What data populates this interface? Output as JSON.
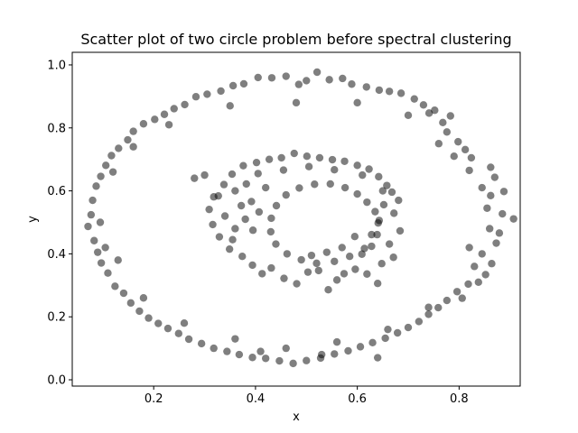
{
  "chart_data": {
    "type": "scatter",
    "title": "Scatter plot of two circle problem before spectral clustering",
    "xlabel": "x",
    "ylabel": "y",
    "xlim": [
      0.04,
      0.92
    ],
    "ylim": [
      -0.02,
      1.04
    ],
    "xticks": [
      0.2,
      0.4,
      0.6,
      0.8
    ],
    "yticks": [
      0.0,
      0.2,
      0.4,
      0.6,
      0.8,
      1.0
    ],
    "xtick_labels": [
      "0.2",
      "0.4",
      "0.6",
      "0.8"
    ],
    "ytick_labels": [
      "0.0",
      "0.2",
      "0.4",
      "0.6",
      "0.8",
      "1.0"
    ],
    "grid": false,
    "legend": "none",
    "marker_color": "#000000",
    "marker_opacity": 0.5,
    "series": [
      {
        "points": [
          [
            0.907,
            0.511
          ],
          [
            0.862,
            0.585
          ],
          [
            0.885,
            0.527
          ],
          [
            0.888,
            0.598
          ],
          [
            0.879,
            0.466
          ],
          [
            0.873,
            0.434
          ],
          [
            0.864,
            0.369
          ],
          [
            0.87,
            0.643
          ],
          [
            0.862,
            0.675
          ],
          [
            0.824,
            0.705
          ],
          [
            0.812,
            0.731
          ],
          [
            0.852,
            0.334
          ],
          [
            0.838,
            0.31
          ],
          [
            0.818,
            0.304
          ],
          [
            0.806,
            0.259
          ],
          [
            0.798,
            0.756
          ],
          [
            0.776,
            0.787
          ],
          [
            0.768,
            0.817
          ],
          [
            0.783,
            0.838
          ],
          [
            0.752,
            0.856
          ],
          [
            0.741,
            0.847
          ],
          [
            0.73,
            0.873
          ],
          [
            0.712,
            0.892
          ],
          [
            0.686,
            0.91
          ],
          [
            0.663,
            0.916
          ],
          [
            0.643,
            0.92
          ],
          [
            0.618,
            0.93
          ],
          [
            0.589,
            0.939
          ],
          [
            0.571,
            0.957
          ],
          [
            0.545,
            0.953
          ],
          [
            0.521,
            0.977
          ],
          [
            0.5,
            0.95
          ],
          [
            0.485,
            0.938
          ],
          [
            0.46,
            0.964
          ],
          [
            0.432,
            0.959
          ],
          [
            0.405,
            0.96
          ],
          [
            0.377,
            0.94
          ],
          [
            0.356,
            0.934
          ],
          [
            0.332,
            0.917
          ],
          [
            0.305,
            0.907
          ],
          [
            0.283,
            0.899
          ],
          [
            0.261,
            0.874
          ],
          [
            0.24,
            0.861
          ],
          [
            0.221,
            0.843
          ],
          [
            0.202,
            0.827
          ],
          [
            0.18,
            0.813
          ],
          [
            0.16,
            0.789
          ],
          [
            0.149,
            0.762
          ],
          [
            0.131,
            0.735
          ],
          [
            0.117,
            0.712
          ],
          [
            0.106,
            0.681
          ],
          [
            0.096,
            0.646
          ],
          [
            0.087,
            0.615
          ],
          [
            0.08,
            0.57
          ],
          [
            0.077,
            0.524
          ],
          [
            0.071,
            0.487
          ],
          [
            0.083,
            0.442
          ],
          [
            0.09,
            0.405
          ],
          [
            0.097,
            0.371
          ],
          [
            0.11,
            0.339
          ],
          [
            0.124,
            0.297
          ],
          [
            0.141,
            0.275
          ],
          [
            0.155,
            0.244
          ],
          [
            0.172,
            0.218
          ],
          [
            0.19,
            0.196
          ],
          [
            0.209,
            0.179
          ],
          [
            0.228,
            0.163
          ],
          [
            0.249,
            0.147
          ],
          [
            0.269,
            0.129
          ],
          [
            0.294,
            0.115
          ],
          [
            0.318,
            0.1
          ],
          [
            0.344,
            0.09
          ],
          [
            0.368,
            0.08
          ],
          [
            0.394,
            0.071
          ],
          [
            0.42,
            0.068
          ],
          [
            0.447,
            0.06
          ],
          [
            0.474,
            0.052
          ],
          [
            0.5,
            0.061
          ],
          [
            0.528,
            0.069
          ],
          [
            0.555,
            0.082
          ],
          [
            0.582,
            0.092
          ],
          [
            0.606,
            0.105
          ],
          [
            0.63,
            0.118
          ],
          [
            0.655,
            0.132
          ],
          [
            0.679,
            0.149
          ],
          [
            0.7,
            0.166
          ],
          [
            0.721,
            0.185
          ],
          [
            0.74,
            0.208
          ],
          [
            0.759,
            0.229
          ],
          [
            0.776,
            0.252
          ],
          [
            0.796,
            0.28
          ],
          [
            0.83,
            0.36
          ],
          [
            0.845,
            0.4
          ],
          [
            0.86,
            0.48
          ],
          [
            0.855,
            0.545
          ],
          [
            0.845,
            0.61
          ],
          [
            0.82,
            0.665
          ],
          [
            0.79,
            0.71
          ],
          [
            0.76,
            0.75
          ],
          [
            0.7,
            0.84
          ],
          [
            0.6,
            0.88
          ],
          [
            0.48,
            0.88
          ],
          [
            0.35,
            0.87
          ],
          [
            0.23,
            0.81
          ],
          [
            0.16,
            0.74
          ],
          [
            0.12,
            0.66
          ],
          [
            0.095,
            0.5
          ],
          [
            0.105,
            0.42
          ],
          [
            0.13,
            0.38
          ],
          [
            0.18,
            0.26
          ],
          [
            0.26,
            0.18
          ],
          [
            0.36,
            0.13
          ],
          [
            0.46,
            0.1
          ],
          [
            0.56,
            0.12
          ],
          [
            0.66,
            0.16
          ],
          [
            0.74,
            0.23
          ],
          [
            0.82,
            0.42
          ],
          [
            0.41,
            0.09
          ],
          [
            0.53,
            0.08
          ],
          [
            0.64,
            0.07
          ]
        ]
      },
      {
        "points": [
          [
            0.681,
            0.57
          ],
          [
            0.672,
            0.529
          ],
          [
            0.684,
            0.473
          ],
          [
            0.663,
            0.431
          ],
          [
            0.671,
            0.389
          ],
          [
            0.648,
            0.369
          ],
          [
            0.64,
            0.306
          ],
          [
            0.619,
            0.336
          ],
          [
            0.596,
            0.351
          ],
          [
            0.574,
            0.337
          ],
          [
            0.56,
            0.317
          ],
          [
            0.543,
            0.286
          ],
          [
            0.524,
            0.347
          ],
          [
            0.503,
            0.342
          ],
          [
            0.481,
            0.305
          ],
          [
            0.456,
            0.322
          ],
          [
            0.431,
            0.355
          ],
          [
            0.413,
            0.337
          ],
          [
            0.394,
            0.364
          ],
          [
            0.374,
            0.392
          ],
          [
            0.349,
            0.415
          ],
          [
            0.329,
            0.454
          ],
          [
            0.316,
            0.493
          ],
          [
            0.309,
            0.541
          ],
          [
            0.318,
            0.581
          ],
          [
            0.338,
            0.62
          ],
          [
            0.354,
            0.653
          ],
          [
            0.376,
            0.68
          ],
          [
            0.402,
            0.69
          ],
          [
            0.427,
            0.7
          ],
          [
            0.451,
            0.705
          ],
          [
            0.476,
            0.719
          ],
          [
            0.501,
            0.71
          ],
          [
            0.526,
            0.705
          ],
          [
            0.551,
            0.699
          ],
          [
            0.575,
            0.694
          ],
          [
            0.6,
            0.681
          ],
          [
            0.623,
            0.669
          ],
          [
            0.642,
            0.645
          ],
          [
            0.658,
            0.617
          ],
          [
            0.668,
            0.596
          ],
          [
            0.652,
            0.556
          ],
          [
            0.643,
            0.506
          ],
          [
            0.628,
            0.461
          ],
          [
            0.614,
            0.417
          ],
          [
            0.585,
            0.392
          ],
          [
            0.555,
            0.376
          ],
          [
            0.52,
            0.37
          ],
          [
            0.49,
            0.381
          ],
          [
            0.462,
            0.4
          ],
          [
            0.44,
            0.431
          ],
          [
            0.43,
            0.47
          ],
          [
            0.431,
            0.513
          ],
          [
            0.441,
            0.553
          ],
          [
            0.46,
            0.587
          ],
          [
            0.486,
            0.609
          ],
          [
            0.516,
            0.621
          ],
          [
            0.547,
            0.622
          ],
          [
            0.576,
            0.61
          ],
          [
            0.6,
            0.59
          ],
          [
            0.619,
            0.564
          ],
          [
            0.635,
            0.534
          ],
          [
            0.641,
            0.498
          ],
          [
            0.639,
            0.461
          ],
          [
            0.628,
            0.424
          ],
          [
            0.609,
            0.399
          ],
          [
            0.36,
            0.6
          ],
          [
            0.372,
            0.553
          ],
          [
            0.392,
            0.566
          ],
          [
            0.407,
            0.533
          ],
          [
            0.38,
            0.51
          ],
          [
            0.395,
            0.475
          ],
          [
            0.36,
            0.48
          ],
          [
            0.34,
            0.52
          ],
          [
            0.355,
            0.445
          ],
          [
            0.3,
            0.65
          ],
          [
            0.42,
            0.61
          ],
          [
            0.28,
            0.64
          ],
          [
            0.65,
            0.6
          ],
          [
            0.61,
            0.65
          ],
          [
            0.555,
            0.667
          ],
          [
            0.505,
            0.677
          ],
          [
            0.455,
            0.666
          ],
          [
            0.405,
            0.655
          ],
          [
            0.382,
            0.622
          ],
          [
            0.327,
            0.584
          ],
          [
            0.595,
            0.455
          ],
          [
            0.57,
            0.42
          ],
          [
            0.54,
            0.405
          ],
          [
            0.51,
            0.395
          ]
        ]
      }
    ]
  }
}
